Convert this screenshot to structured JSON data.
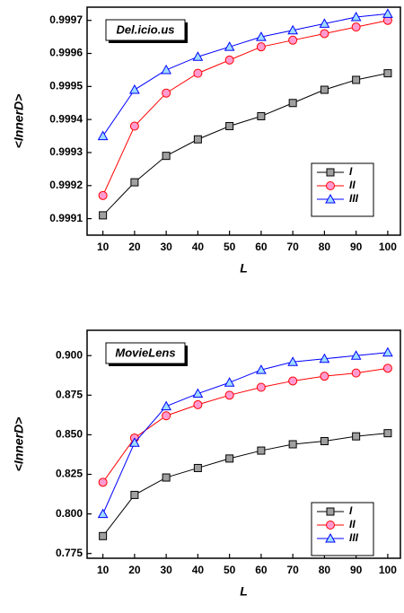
{
  "chart_data": [
    {
      "type": "line",
      "annotation": "Del.icio.us",
      "xlabel": "L",
      "ylabel": "<InnerD>",
      "x": [
        10,
        20,
        30,
        40,
        50,
        60,
        70,
        80,
        90,
        100
      ],
      "xlim": [
        5,
        104
      ],
      "xticks": [
        10,
        20,
        30,
        40,
        50,
        60,
        70,
        80,
        90,
        100
      ],
      "ylim": [
        0.99905,
        0.99974
      ],
      "yticks": [
        0.9991,
        0.9992,
        0.9993,
        0.9994,
        0.9995,
        0.9996,
        0.9997
      ],
      "legend": "lower right",
      "series": [
        {
          "name": "I",
          "color": "#000000",
          "marker": "square",
          "marker_fill": "#a0a0a0",
          "values": [
            0.99911,
            0.99921,
            0.99929,
            0.99934,
            0.99938,
            0.99941,
            0.99945,
            0.99949,
            0.99952,
            0.99954
          ]
        },
        {
          "name": "II",
          "color": "#ff0000",
          "marker": "circle",
          "marker_fill": "#ff9bd0",
          "values": [
            0.99917,
            0.99938,
            0.99948,
            0.99954,
            0.99958,
            0.99962,
            0.99964,
            0.99966,
            0.99968,
            0.9997
          ]
        },
        {
          "name": "III",
          "color": "#0000ff",
          "marker": "triangle",
          "marker_fill": "#9fdcff",
          "values": [
            0.99935,
            0.99949,
            0.99955,
            0.99959,
            0.99962,
            0.99965,
            0.99967,
            0.99969,
            0.99971,
            0.99972
          ]
        }
      ]
    },
    {
      "type": "line",
      "annotation": "MovieLens",
      "xlabel": "L",
      "ylabel": "<InnerD>",
      "x": [
        10,
        20,
        30,
        40,
        50,
        60,
        70,
        80,
        90,
        100
      ],
      "xlim": [
        5,
        104
      ],
      "xticks": [
        10,
        20,
        30,
        40,
        50,
        60,
        70,
        80,
        90,
        100
      ],
      "ylim": [
        0.772,
        0.916
      ],
      "yticks": [
        0.775,
        {
          "value": 0.8,
          "label": "0.800"
        },
        0.825,
        {
          "value": 0.85,
          "label": "0.850"
        },
        0.875,
        {
          "value": 0.9,
          "label": "0.900"
        }
      ],
      "legend": "lower right",
      "series": [
        {
          "name": "I",
          "color": "#000000",
          "marker": "square",
          "marker_fill": "#a0a0a0",
          "values": [
            0.786,
            0.812,
            0.823,
            0.829,
            0.835,
            0.84,
            0.844,
            0.846,
            0.849,
            0.851
          ]
        },
        {
          "name": "II",
          "color": "#ff0000",
          "marker": "circle",
          "marker_fill": "#ff9bd0",
          "values": [
            0.82,
            0.848,
            0.862,
            0.869,
            0.875,
            0.88,
            0.884,
            0.887,
            0.889,
            0.892
          ]
        },
        {
          "name": "III",
          "color": "#0000ff",
          "marker": "triangle",
          "marker_fill": "#9fdcff",
          "values": [
            0.8,
            0.845,
            0.868,
            0.876,
            0.883,
            0.891,
            0.896,
            0.898,
            0.9,
            0.902
          ]
        }
      ]
    }
  ]
}
